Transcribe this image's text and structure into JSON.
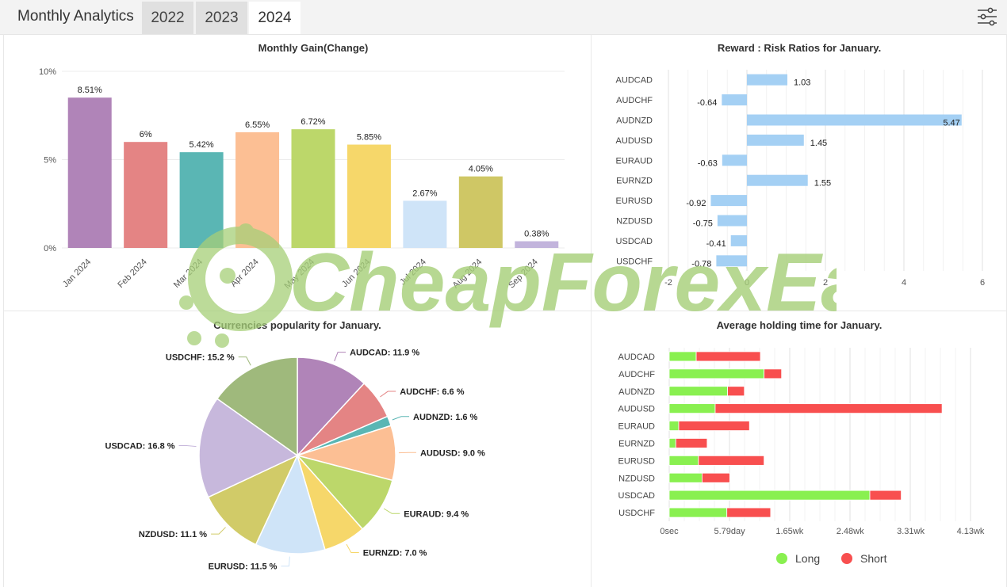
{
  "header": {
    "title": "Monthly Analytics",
    "tabs": [
      {
        "label": "2022",
        "active": false
      },
      {
        "label": "2023",
        "active": false
      },
      {
        "label": "2024",
        "active": true
      }
    ],
    "settings_icon": "sliders-icon"
  },
  "watermark": {
    "text": "CheapForexEa",
    "color": "#a6cf78"
  },
  "chart_data": [
    {
      "type": "bar",
      "title": "Monthly Gain(Change)",
      "categories": [
        "Jan 2024",
        "Feb 2024",
        "Mar 2024",
        "Apr 2024",
        "May 2024",
        "Jun 2024",
        "Jul 2024",
        "Aug 2024",
        "Sep 2024"
      ],
      "values": [
        8.51,
        6,
        5.42,
        6.55,
        6.72,
        5.85,
        2.67,
        4.05,
        0.38
      ],
      "data_labels": [
        "8.51%",
        "6%",
        "5.42%",
        "6.55%",
        "6.72%",
        "5.85%",
        "2.67%",
        "4.05%",
        "0.38%"
      ],
      "colors": [
        "#b084b8",
        "#e48484",
        "#5ab6b4",
        "#fcbf94",
        "#bcd76a",
        "#f6d76a",
        "#cfe4f8",
        "#cfc765",
        "#c2b4dc"
      ],
      "ylim": [
        0,
        10
      ],
      "yticks": [
        "0%",
        "5%",
        "10%"
      ],
      "grid": true
    },
    {
      "type": "bar",
      "orientation": "horizontal",
      "title": "Reward : Risk Ratios for January.",
      "categories": [
        "AUDCAD",
        "AUDCHF",
        "AUDNZD",
        "AUDUSD",
        "EURAUD",
        "EURNZD",
        "EURUSD",
        "NZDUSD",
        "USDCAD",
        "USDCHF"
      ],
      "values": [
        1.03,
        -0.64,
        5.47,
        1.45,
        -0.63,
        1.55,
        -0.92,
        -0.75,
        -0.41,
        -0.78
      ],
      "xlim": [
        -2,
        6
      ],
      "xticks": [
        "-2",
        "0",
        "2",
        "4",
        "6"
      ],
      "color": "#a4d0f4",
      "grid": true
    },
    {
      "type": "pie",
      "title": "Currencies popularity for January.",
      "labels": [
        "AUDCAD",
        "AUDCHF",
        "AUDNZD",
        "AUDUSD",
        "EURAUD",
        "EURNZD",
        "EURUSD",
        "NZDUSD",
        "USDCAD",
        "USDCHF"
      ],
      "values": [
        11.9,
        6.6,
        1.6,
        9.0,
        9.4,
        7.0,
        11.5,
        11.1,
        16.8,
        15.2
      ],
      "value_labels": [
        "AUDCAD: 11.9 %",
        "AUDCHF: 6.6 %",
        "AUDNZD: 1.6 %",
        "AUDUSD: 9.0 %",
        "EURAUD: 9.4 %",
        "EURNZD: 7.0 %",
        "EURUSD: 11.5 %",
        "NZDUSD: 11.1 %",
        "USDCAD: 16.8 %",
        "USDCHF: 15.2 %"
      ],
      "colors": [
        "#b084b8",
        "#e48484",
        "#5ab6b4",
        "#fcbf94",
        "#bcd76a",
        "#f6d76a",
        "#cfe4f8",
        "#d1cb68",
        "#c7b8dc",
        "#9fb97c"
      ]
    },
    {
      "type": "bar",
      "orientation": "horizontal",
      "stacked": true,
      "title": "Average holding time for January.",
      "categories": [
        "AUDCAD",
        "AUDCHF",
        "AUDNZD",
        "AUDUSD",
        "EURAUD",
        "EURNZD",
        "EURUSD",
        "NZDUSD",
        "USDCAD",
        "USDCHF"
      ],
      "xticks": [
        "0sec",
        "5.79day",
        "1.65wk",
        "2.48wk",
        "3.31wk",
        "4.13wk"
      ],
      "xlim_weeks": [
        0,
        4.13
      ],
      "series": [
        {
          "name": "Long",
          "color": "#89f050",
          "values_weeks": [
            0.37,
            1.3,
            0.8,
            0.63,
            0.13,
            0.09,
            0.4,
            0.45,
            2.75,
            0.79
          ]
        },
        {
          "name": "Short",
          "color": "#f84f4f",
          "values_weeks": [
            0.88,
            0.24,
            0.23,
            3.11,
            0.97,
            0.43,
            0.9,
            0.38,
            0.43,
            0.6
          ]
        }
      ],
      "legend_position": "bottom",
      "grid": true
    }
  ]
}
